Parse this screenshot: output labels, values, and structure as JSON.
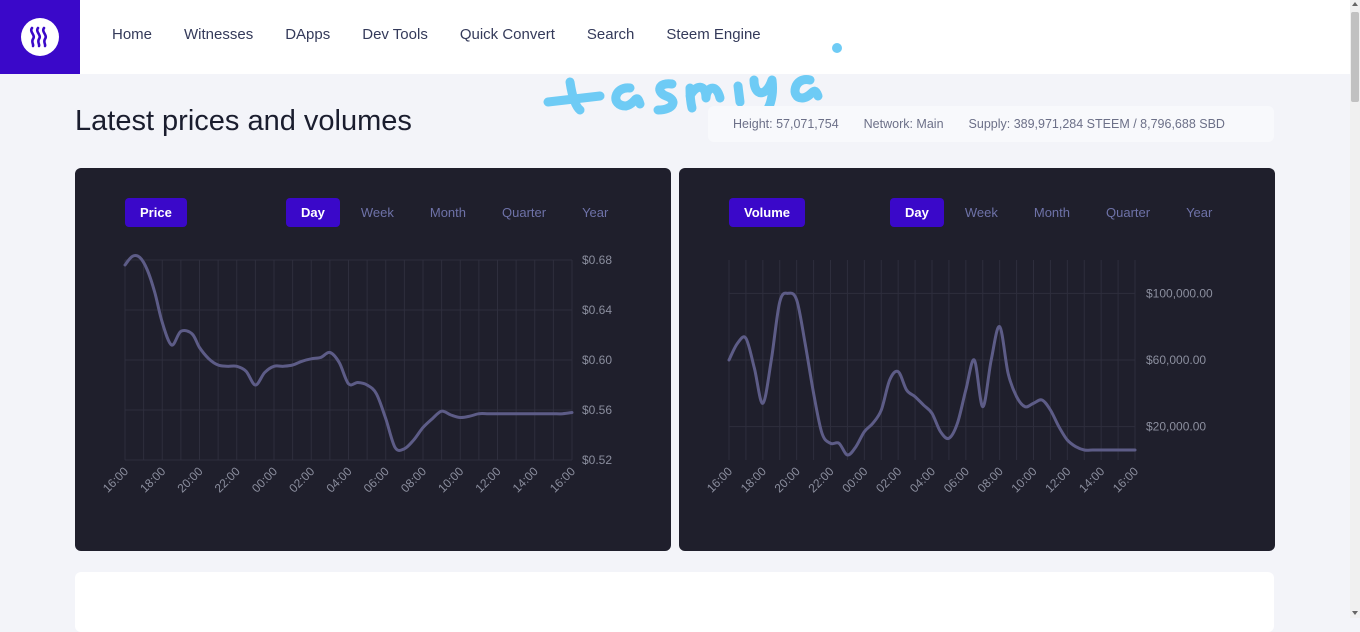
{
  "nav": {
    "logo_icon": "steem-logo-icon",
    "items": [
      "Home",
      "Witnesses",
      "DApps",
      "Dev Tools",
      "Quick Convert",
      "Search",
      "Steem Engine"
    ]
  },
  "watermark": "tasmiya",
  "page_title": "Latest prices and volumes",
  "stats": {
    "height": "Height: 57,071,754",
    "network": "Network: Main",
    "supply": "Supply: 389,971,284 STEEM / 8,796,688 SBD"
  },
  "colors": {
    "accent": "#3a08c9",
    "panel_bg": "#1f1f2c",
    "line": "#5d5c87",
    "grid": "#2e2e3d",
    "range_text": "#6e72a8"
  },
  "ranges": [
    "Day",
    "Week",
    "Month",
    "Quarter",
    "Year"
  ],
  "active_range": "Day",
  "chart_data": [
    {
      "type": "line",
      "metric_label": "Price",
      "x_ticks": [
        "16:00",
        "18:00",
        "20:00",
        "22:00",
        "00:00",
        "02:00",
        "04:00",
        "06:00",
        "08:00",
        "10:00",
        "12:00",
        "14:00",
        "16:00"
      ],
      "y_ticks": [
        "$0.68",
        "$0.64",
        "$0.60",
        "$0.56",
        "$0.52"
      ],
      "ylim": [
        0.52,
        0.68
      ],
      "grid": true,
      "series": [
        {
          "x": [
            0,
            0.4,
            0.8,
            1.2,
            1.6,
            2,
            2.5,
            3,
            3.6,
            4,
            4.5,
            5,
            5.5,
            6,
            6.5,
            7,
            7.5,
            8,
            8.5,
            9,
            9.5,
            10,
            10.5,
            11,
            11.5,
            12,
            12.5,
            13,
            13.5,
            14,
            14.5,
            15,
            15.5,
            16,
            16.5,
            17,
            17.5,
            18,
            18.5,
            19,
            19.5,
            20,
            20.5,
            21,
            21.5,
            22,
            22.5,
            23,
            23.5,
            24
          ],
          "values": [
            0.676,
            0.683,
            0.682,
            0.672,
            0.654,
            0.63,
            0.612,
            0.623,
            0.621,
            0.61,
            0.601,
            0.596,
            0.595,
            0.595,
            0.591,
            0.58,
            0.59,
            0.595,
            0.595,
            0.596,
            0.599,
            0.601,
            0.602,
            0.606,
            0.598,
            0.581,
            0.582,
            0.58,
            0.573,
            0.553,
            0.53,
            0.529,
            0.536,
            0.546,
            0.553,
            0.559,
            0.556,
            0.554,
            0.555,
            0.557,
            0.557,
            0.557,
            0.557,
            0.557,
            0.557,
            0.557,
            0.557,
            0.557,
            0.557,
            0.558
          ]
        }
      ]
    },
    {
      "type": "line",
      "metric_label": "Volume",
      "x_ticks": [
        "16:00",
        "18:00",
        "20:00",
        "22:00",
        "00:00",
        "02:00",
        "04:00",
        "06:00",
        "08:00",
        "10:00",
        "12:00",
        "14:00",
        "16:00"
      ],
      "y_ticks": [
        "$100,000.00",
        "$60,000.00",
        "$20,000.00"
      ],
      "ylim": [
        0,
        120000
      ],
      "grid": true,
      "series": [
        {
          "x": [
            0,
            0.5,
            1,
            1.5,
            2,
            2.5,
            3,
            3.5,
            4,
            4.5,
            5,
            5.5,
            6,
            6.5,
            7,
            7.5,
            8,
            8.5,
            9,
            9.5,
            10,
            10.5,
            11,
            11.5,
            12,
            12.5,
            13,
            13.5,
            14,
            14.5,
            15,
            15.5,
            16,
            16.5,
            17,
            17.5,
            18,
            18.5,
            19,
            19.5,
            20,
            20.5,
            21,
            21.5,
            22,
            22.5,
            23,
            23.5,
            24
          ],
          "values": [
            60000,
            70000,
            73000,
            55000,
            34000,
            60000,
            95000,
            100000,
            96000,
            70000,
            40000,
            16000,
            10000,
            10000,
            3000,
            8000,
            17000,
            22000,
            30000,
            48000,
            53000,
            42000,
            38000,
            33000,
            28000,
            17000,
            13000,
            22000,
            42000,
            60000,
            32000,
            60000,
            80000,
            52000,
            38000,
            32000,
            34000,
            36000,
            30000,
            20000,
            12000,
            8000,
            6000,
            6000,
            6000,
            6000,
            6000,
            6000,
            6000
          ]
        }
      ]
    }
  ]
}
